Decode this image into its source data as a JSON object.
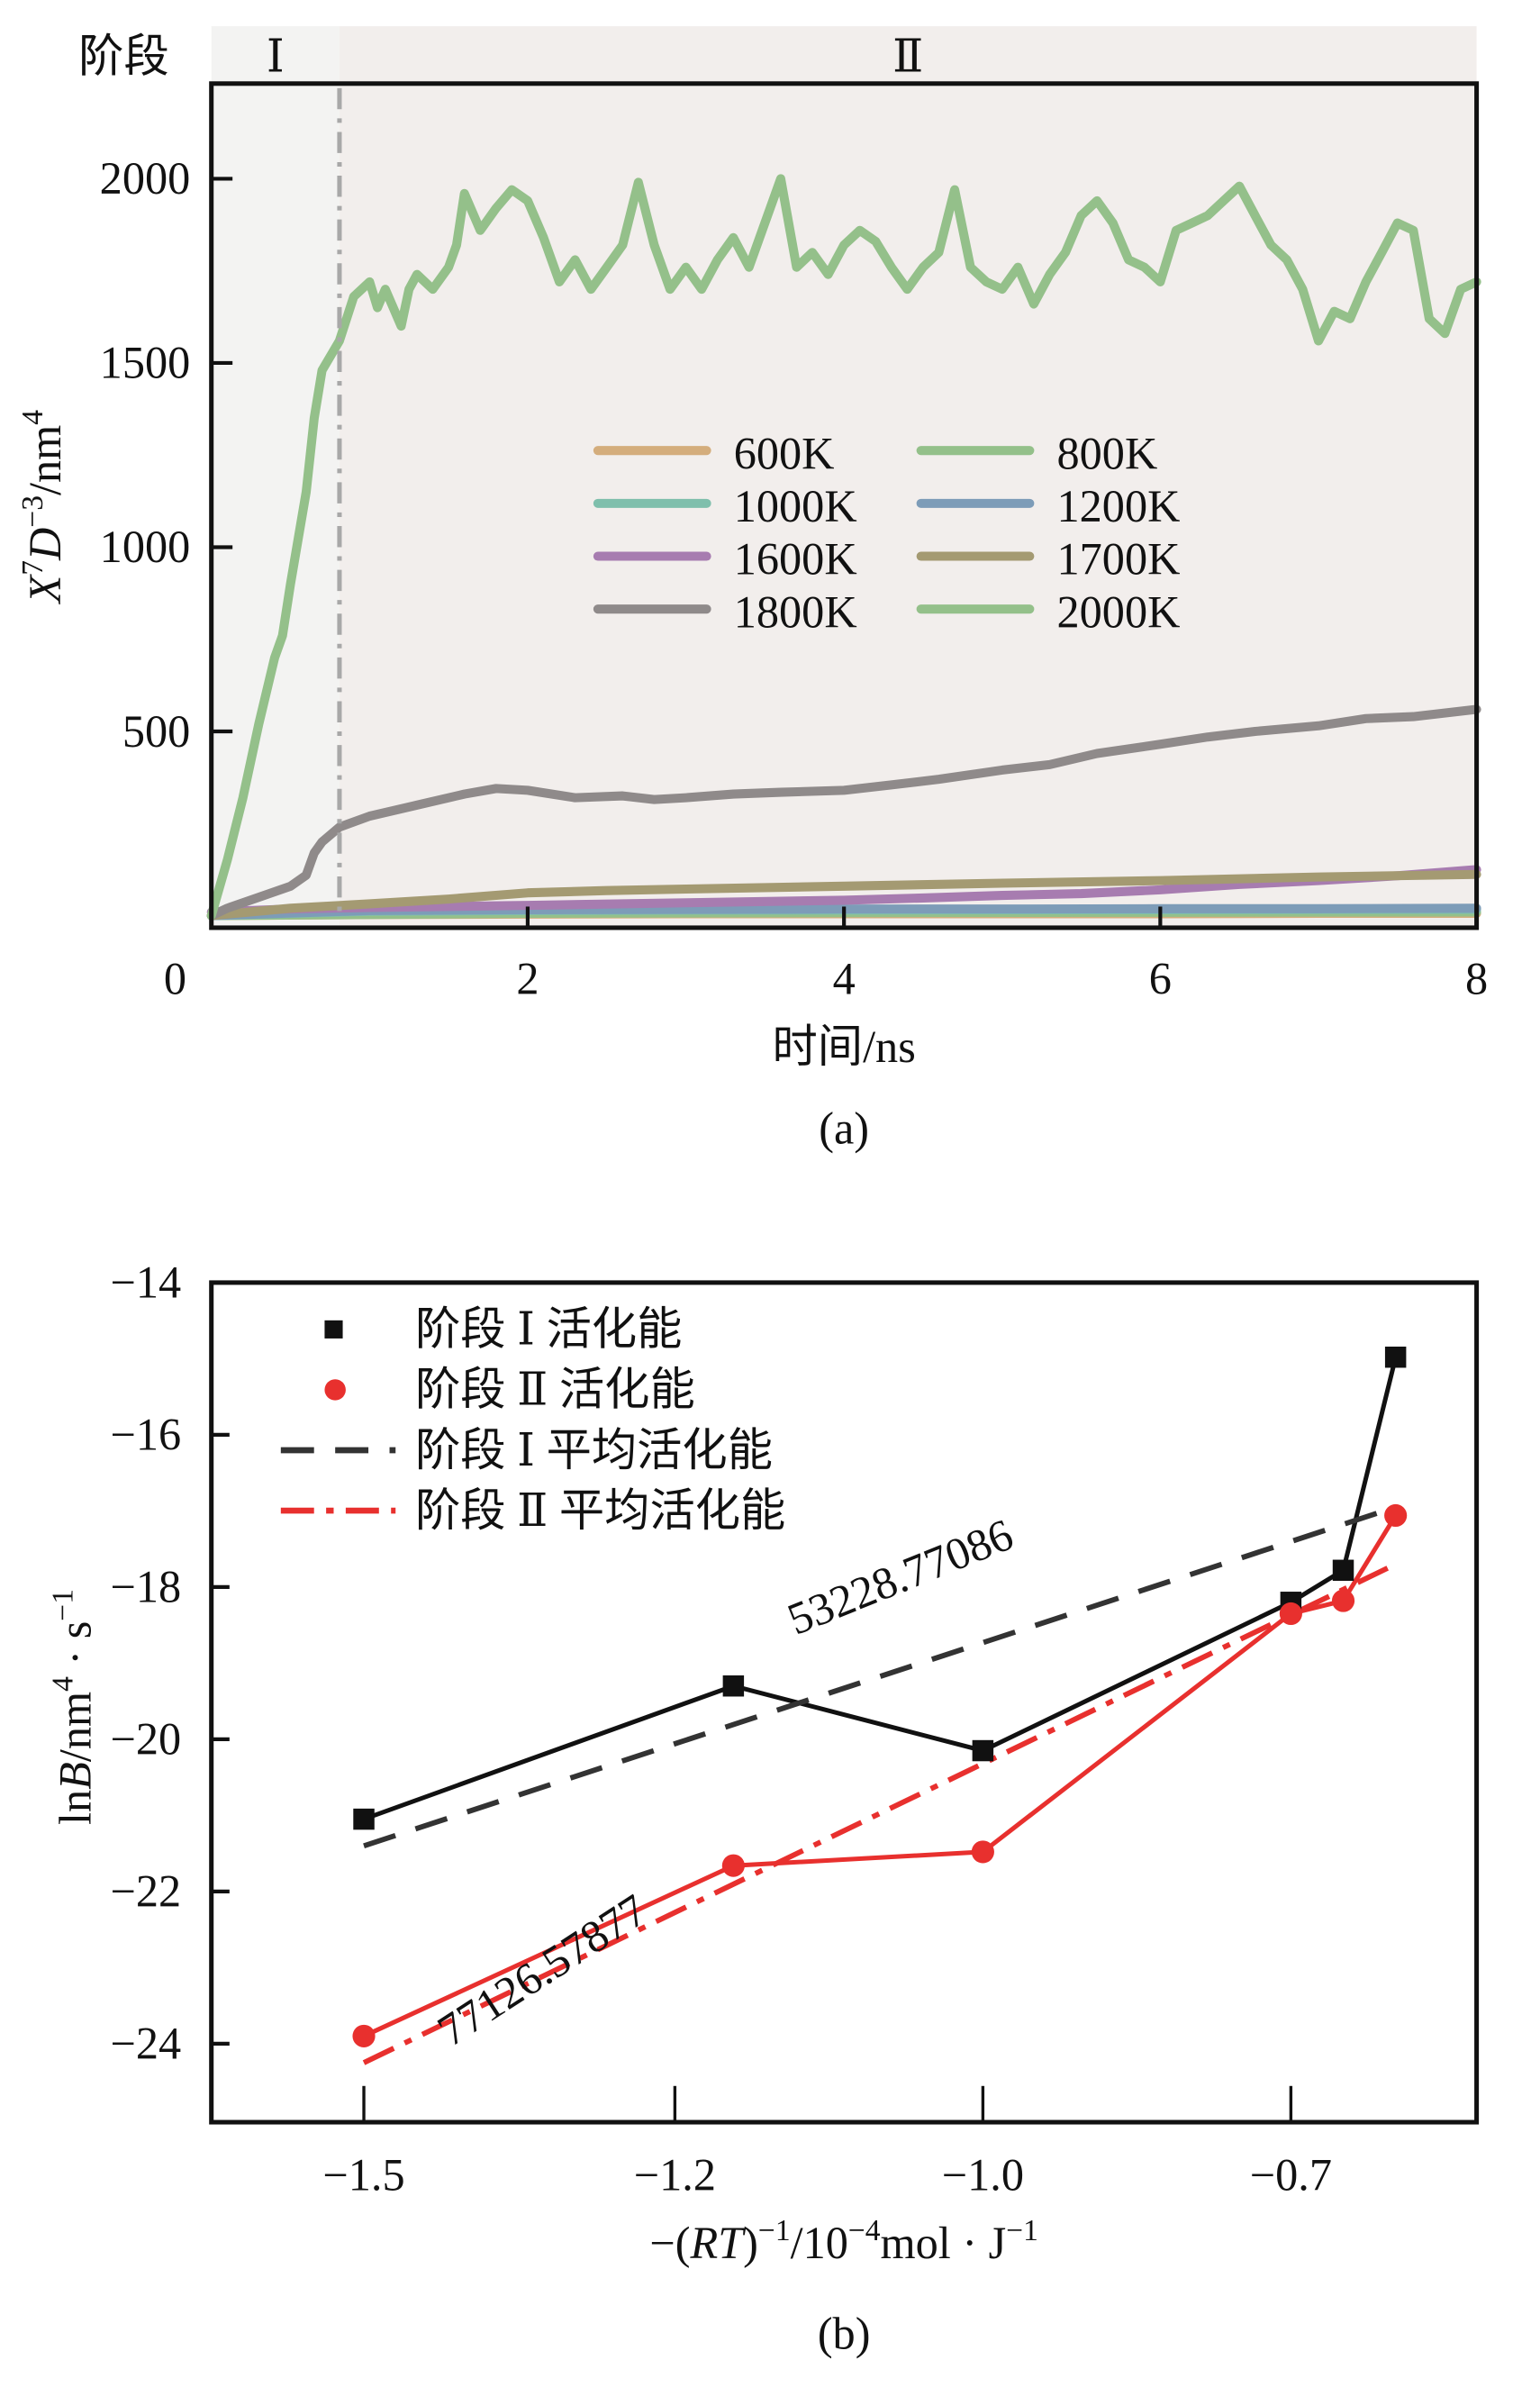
{
  "figure": {
    "panel_a_label": "(a)",
    "panel_b_label": "(b)"
  },
  "chart_data": [
    {
      "id": "a",
      "type": "line",
      "title": "",
      "xlabel": "时间/ns",
      "ylabel_parts": {
        "x": "X",
        "x_sup": "7",
        "d": "D",
        "d_sup": "−3",
        "unit": "/nm",
        "unit_sup": "4"
      },
      "ylabel": "X^7 D^-3 /nm^4",
      "xlim": [
        0,
        8
      ],
      "ylim": [
        -20,
        2250
      ],
      "xticks": [
        0,
        2,
        4,
        6,
        8
      ],
      "xtick_labels": [
        "0",
        "2",
        "4",
        "6",
        "8"
      ],
      "yticks": [
        500,
        1000,
        1500,
        2000
      ],
      "ytick_labels": [
        "500",
        "1000",
        "1500",
        "2000"
      ],
      "grid": false,
      "legend_position": "center",
      "stage_bar": {
        "label": "阶段",
        "stages": [
          {
            "name": "Ⅰ",
            "from": 0,
            "to": 0.81,
            "color": "#f3f3f2"
          },
          {
            "name": "Ⅱ",
            "from": 0.81,
            "to": 8,
            "color": "#f2eeec"
          }
        ],
        "divider_x": 0.81
      },
      "series": [
        {
          "name": "600K",
          "color": "#d4ad7c",
          "x": [
            0,
            1,
            2,
            3,
            4,
            5,
            6,
            7,
            8
          ],
          "y": [
            0,
            3,
            4,
            5,
            5,
            5,
            5,
            6,
            6
          ]
        },
        {
          "name": "800K",
          "color": "#94c08a",
          "x": [
            0,
            2,
            4,
            6,
            8
          ],
          "y": [
            0,
            6,
            8,
            9,
            10
          ]
        },
        {
          "name": "1000K",
          "color": "#7fbfac",
          "x": [
            0,
            1,
            2,
            3,
            4,
            5,
            6,
            7,
            8
          ],
          "y": [
            0,
            12,
            14,
            15,
            15,
            16,
            16,
            17,
            17
          ]
        },
        {
          "name": "1200K",
          "color": "#7d9cb8",
          "x": [
            0,
            1,
            2,
            3,
            4,
            5,
            6,
            7,
            8
          ],
          "y": [
            0,
            14,
            16,
            17,
            18,
            18,
            19,
            19,
            20
          ]
        },
        {
          "name": "1600K",
          "color": "#a77cb0",
          "x": [
            0,
            0.5,
            1,
            2,
            3,
            4,
            4.5,
            5,
            5.5,
            6,
            6.5,
            7,
            7.5,
            8
          ],
          "y": [
            10,
            18,
            22,
            28,
            35,
            42,
            48,
            55,
            60,
            70,
            85,
            95,
            108,
            125
          ]
        },
        {
          "name": "1700K",
          "color": "#a49a72",
          "x": [
            0,
            0.5,
            1,
            1.5,
            2,
            2.5,
            3,
            4,
            5,
            6,
            7,
            8
          ],
          "y": [
            0,
            20,
            32,
            45,
            62,
            68,
            72,
            80,
            88,
            95,
            105,
            112
          ]
        },
        {
          "name": "1800K",
          "color": "#8f8a8a",
          "x": [
            0,
            0.1,
            0.3,
            0.5,
            0.6,
            0.65,
            0.7,
            0.81,
            1.0,
            1.3,
            1.6,
            1.8,
            2.0,
            2.3,
            2.6,
            2.8,
            3.0,
            3.3,
            3.6,
            4.0,
            4.3,
            4.6,
            5.0,
            5.3,
            5.6,
            6.0,
            6.3,
            6.6,
            7.0,
            7.3,
            7.6,
            8.0
          ],
          "y": [
            0,
            20,
            50,
            80,
            110,
            170,
            200,
            240,
            270,
            300,
            330,
            345,
            340,
            320,
            325,
            315,
            320,
            330,
            335,
            340,
            355,
            370,
            395,
            410,
            440,
            465,
            485,
            500,
            515,
            535,
            540,
            560
          ]
        },
        {
          "name": "2000K",
          "color": "#94c08a",
          "x": [
            0,
            0.1,
            0.2,
            0.3,
            0.4,
            0.45,
            0.5,
            0.6,
            0.65,
            0.7,
            0.81,
            0.9,
            1.0,
            1.05,
            1.1,
            1.2,
            1.25,
            1.3,
            1.4,
            1.5,
            1.55,
            1.6,
            1.7,
            1.8,
            1.9,
            2.0,
            2.1,
            2.2,
            2.3,
            2.4,
            2.5,
            2.6,
            2.7,
            2.8,
            2.9,
            3.0,
            3.1,
            3.2,
            3.3,
            3.4,
            3.5,
            3.6,
            3.7,
            3.8,
            3.9,
            4.0,
            4.1,
            4.2,
            4.3,
            4.4,
            4.5,
            4.6,
            4.7,
            4.8,
            4.9,
            5.0,
            5.1,
            5.2,
            5.3,
            5.4,
            5.5,
            5.6,
            5.7,
            5.8,
            5.9,
            6.0,
            6.1,
            6.2,
            6.3,
            6.4,
            6.5,
            6.6,
            6.7,
            6.8,
            6.9,
            7.0,
            7.1,
            7.2,
            7.3,
            7.4,
            7.5,
            7.6,
            7.7,
            7.8,
            7.9,
            8.0
          ],
          "y": [
            0,
            150,
            320,
            520,
            700,
            760,
            900,
            1150,
            1350,
            1480,
            1560,
            1680,
            1720,
            1650,
            1700,
            1600,
            1700,
            1740,
            1700,
            1760,
            1820,
            1960,
            1860,
            1920,
            1970,
            1940,
            1840,
            1720,
            1780,
            1700,
            1760,
            1820,
            1990,
            1820,
            1700,
            1760,
            1700,
            1780,
            1840,
            1760,
            1880,
            2000,
            1760,
            1800,
            1740,
            1820,
            1860,
            1830,
            1760,
            1700,
            1760,
            1800,
            1970,
            1760,
            1720,
            1700,
            1760,
            1660,
            1740,
            1800,
            1900,
            1940,
            1880,
            1780,
            1760,
            1720,
            1860,
            1880,
            1900,
            1940,
            1980,
            1900,
            1820,
            1780,
            1700,
            1560,
            1640,
            1620,
            1720,
            1800,
            1880,
            1860,
            1620,
            1580,
            1700,
            1720
          ]
        }
      ]
    },
    {
      "id": "b",
      "type": "line",
      "title": "",
      "xlabel_parts": {
        "prefix": "−(",
        "rt": "RT",
        "mid": ")",
        "sup1": "−1",
        "mid2": "/10",
        "sup2": "−4",
        "mid3": "mol · J",
        "sup3": "−1"
      },
      "xlabel": "−(RT)^-1 /10^-4 mol·J^-1",
      "ylabel_parts": {
        "ln": "ln",
        "b": "B",
        "unit": "/nm",
        "sup1": "4",
        "mid": " · s",
        "sup2": "−1"
      },
      "ylabel": "lnB/nm^4·s^-1",
      "xticks": [
        -1.5,
        -1.2,
        -1.0,
        -0.7
      ],
      "xtick_labels": [
        "−1.5",
        "−1.2",
        "−1.0",
        "−0.7"
      ],
      "xlim_extra": [
        -1.67,
        -0.54
      ],
      "yticks": [
        -14,
        -16,
        -18,
        -20,
        -22,
        -24
      ],
      "ytick_labels": [
        "−14",
        "−16",
        "−18",
        "−20",
        "−22",
        "−24"
      ],
      "ylim": [
        -25,
        -14
      ],
      "grid": false,
      "legend_position": "top-left",
      "series": [
        {
          "name": "阶段Ⅰ活化能",
          "color": "#111111",
          "marker": "square",
          "style": "solid",
          "x": [
            -1.5,
            -1.162,
            -1.0,
            -0.7,
            -0.649,
            -0.598
          ],
          "y": [
            -21.05,
            -19.3,
            -20.15,
            -18.2,
            -17.78,
            -14.98
          ]
        },
        {
          "name": "阶段Ⅱ活化能",
          "color": "#e8302e",
          "marker": "circle",
          "style": "solid",
          "x": [
            -1.5,
            -1.162,
            -1.0,
            -0.7,
            -0.649,
            -0.598
          ],
          "y": [
            -23.9,
            -21.66,
            -21.48,
            -18.35,
            -18.18,
            -17.06
          ]
        },
        {
          "name": "阶段Ⅰ平均活化能",
          "color": "#333333",
          "marker": "none",
          "style": "dashed",
          "x": [
            -1.5,
            -0.598
          ],
          "y": [
            -21.4,
            -16.95
          ]
        },
        {
          "name": "阶段Ⅱ平均活化能",
          "color": "#e8302e",
          "marker": "none",
          "style": "dashdot",
          "x": [
            -1.5,
            -0.598
          ],
          "y": [
            -24.25,
            -17.7
          ]
        }
      ],
      "legend_labels": [
        {
          "stage": "阶段",
          "num": "Ⅰ",
          "rest": "活化能"
        },
        {
          "stage": "阶段",
          "num": "Ⅱ",
          "rest": "活化能"
        },
        {
          "stage": "阶段",
          "num": "Ⅰ",
          "rest": "平均活化能"
        },
        {
          "stage": "阶段",
          "num": "Ⅱ",
          "rest": "平均活化能"
        }
      ],
      "annotations": [
        {
          "text": "53228.77086",
          "x": -1.05,
          "y": -18.05,
          "angle": -22
        },
        {
          "text": "77126.57877",
          "x": -1.32,
          "y": -23.2,
          "angle": -33
        }
      ]
    }
  ]
}
